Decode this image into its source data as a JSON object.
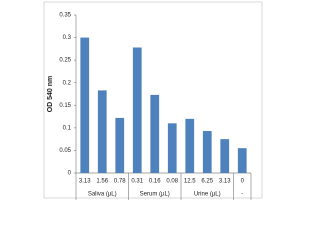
{
  "chart_data": {
    "type": "bar",
    "y_label": "OD 540 nm",
    "color": "#4f81bd",
    "ylim": [
      0,
      0.35
    ],
    "yticks": [
      0,
      0.05,
      0.1,
      0.15,
      0.2,
      0.25,
      0.3,
      0.35
    ],
    "grid": false,
    "groups": [
      {
        "name": "Saliva (µL)",
        "categories": [
          "3.13",
          "1.56",
          "0.78"
        ],
        "values": [
          0.3,
          0.183,
          0.122
        ]
      },
      {
        "name": "Serum (µL)",
        "categories": [
          "0.31",
          "0.16",
          "0.08"
        ],
        "values": [
          0.278,
          0.173,
          0.11
        ]
      },
      {
        "name": "Urine (µL)",
        "categories": [
          "12.5",
          "6.25",
          "3.13"
        ],
        "values": [
          0.12,
          0.093,
          0.075
        ]
      },
      {
        "name": "-",
        "categories": [
          "0"
        ],
        "values": [
          0.055
        ]
      }
    ]
  }
}
